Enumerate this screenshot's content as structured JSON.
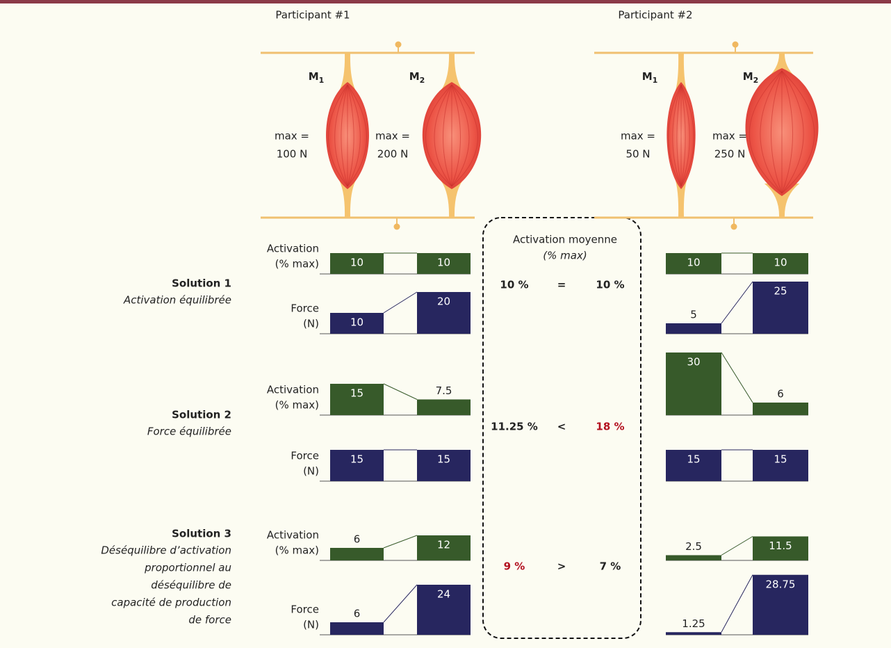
{
  "participants": [
    {
      "label": "Participant #1",
      "muscles": [
        {
          "name": "M",
          "index": "1",
          "max": "max =",
          "capacity": "100 N"
        },
        {
          "name": "M",
          "index": "2",
          "max": "max =",
          "capacity": "200 N"
        }
      ]
    },
    {
      "label": "Participant #2",
      "muscles": [
        {
          "name": "M",
          "index": "1",
          "max": "max =",
          "capacity": "50 N"
        },
        {
          "name": "M",
          "index": "2",
          "max": "max =",
          "capacity": "250 N"
        }
      ]
    }
  ],
  "rows": {
    "activation": {
      "label": "Activation",
      "unit": "(% max)",
      "color": "#375a2a"
    },
    "force": {
      "label": "Force",
      "unit": "(N)",
      "color": "#27265f"
    }
  },
  "mean": {
    "title": "Activation moyenne",
    "unit": "(% max)"
  },
  "highlight_color": "#b3101f",
  "solutions": [
    {
      "title": "Solution 1",
      "description": [
        "Activation équilibrée"
      ],
      "participants": [
        {
          "activation": [
            10,
            10
          ],
          "force": [
            10,
            20
          ]
        },
        {
          "activation": [
            10,
            10
          ],
          "force": [
            5,
            25
          ]
        }
      ],
      "mean": {
        "left": "10 %",
        "operator": "=",
        "right": "10 %"
      }
    },
    {
      "title": "Solution 2",
      "description": [
        "Force équilibrée"
      ],
      "participants": [
        {
          "activation": [
            15,
            7.5
          ],
          "force": [
            15,
            15
          ]
        },
        {
          "activation": [
            30,
            6
          ],
          "force": [
            15,
            15
          ]
        }
      ],
      "mean": {
        "left": "11.25 %",
        "operator": "<",
        "right": "18 %",
        "highlight": "right"
      }
    },
    {
      "title": "Solution 3",
      "description": [
        "Déséquilibre d’activation",
        "proportionnel au",
        "déséquilibre de",
        "capacité de production",
        "de force"
      ],
      "participants": [
        {
          "activation": [
            6,
            12
          ],
          "force": [
            6,
            24
          ]
        },
        {
          "activation": [
            2.5,
            11.5
          ],
          "force": [
            1.25,
            28.75
          ]
        }
      ],
      "mean": {
        "left": "9 %",
        "operator": ">",
        "right": "7 %",
        "highlight": "left"
      }
    }
  ]
}
